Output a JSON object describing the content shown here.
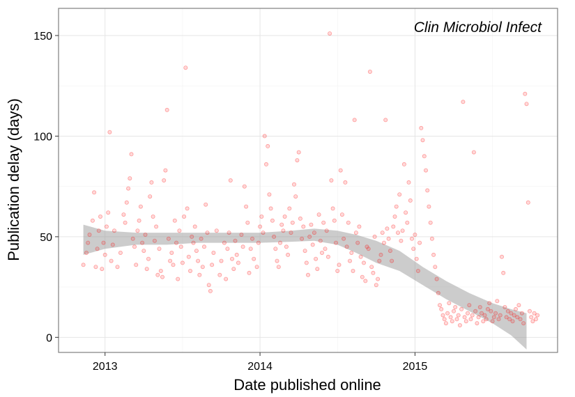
{
  "chart_data": {
    "type": "scatter",
    "title": "",
    "annotation": "Clin Microbiol Infect",
    "xlabel": "Date published online",
    "ylabel": "Publication delay (days)",
    "x_ticks": [
      {
        "label": "2013",
        "value": 2013.0
      },
      {
        "label": "2014",
        "value": 2014.0
      },
      {
        "label": "2015",
        "value": 2015.0
      }
    ],
    "y_ticks": [
      {
        "label": "0",
        "value": 0
      },
      {
        "label": "50",
        "value": 50
      },
      {
        "label": "100",
        "value": 100
      },
      {
        "label": "150",
        "value": 150
      }
    ],
    "xlim": [
      2012.7,
      2015.92
    ],
    "ylim": [
      -7.5,
      163.5
    ],
    "grid": true,
    "colors": {
      "points": "#ff0000",
      "band": "#999999",
      "panel_border": "#7f7f7f",
      "grid_major": "#e5e5e5",
      "grid_minor": "#f2f2f2"
    },
    "smooth_band": [
      {
        "x": 2012.86,
        "lower": 41,
        "upper": 56
      },
      {
        "x": 2013.0,
        "lower": 44,
        "upper": 53
      },
      {
        "x": 2013.2,
        "lower": 46,
        "upper": 52
      },
      {
        "x": 2013.4,
        "lower": 46,
        "upper": 52
      },
      {
        "x": 2013.6,
        "lower": 47,
        "upper": 52
      },
      {
        "x": 2013.8,
        "lower": 47,
        "upper": 52
      },
      {
        "x": 2014.0,
        "lower": 47,
        "upper": 52
      },
      {
        "x": 2014.2,
        "lower": 47.5,
        "upper": 53
      },
      {
        "x": 2014.35,
        "lower": 48,
        "upper": 54
      },
      {
        "x": 2014.5,
        "lower": 46,
        "upper": 53
      },
      {
        "x": 2014.62,
        "lower": 42,
        "upper": 51
      },
      {
        "x": 2014.75,
        "lower": 37,
        "upper": 48
      },
      {
        "x": 2014.9,
        "lower": 33,
        "upper": 43
      },
      {
        "x": 2015.05,
        "lower": 26,
        "upper": 35
      },
      {
        "x": 2015.2,
        "lower": 19,
        "upper": 28
      },
      {
        "x": 2015.35,
        "lower": 13,
        "upper": 22
      },
      {
        "x": 2015.5,
        "lower": 7,
        "upper": 17
      },
      {
        "x": 2015.62,
        "lower": 1,
        "upper": 14
      },
      {
        "x": 2015.72,
        "lower": -6,
        "upper": 12
      }
    ],
    "series": [
      {
        "points": [
          [
            2012.86,
            36
          ],
          [
            2012.88,
            42
          ],
          [
            2012.89,
            47
          ],
          [
            2012.9,
            51
          ],
          [
            2012.92,
            58
          ],
          [
            2012.93,
            72
          ],
          [
            2012.94,
            35
          ],
          [
            2012.95,
            44
          ],
          [
            2012.96,
            53
          ],
          [
            2012.97,
            60
          ],
          [
            2012.98,
            34
          ],
          [
            2012.99,
            47
          ],
          [
            2013.0,
            41
          ],
          [
            2013.01,
            55
          ],
          [
            2013.02,
            62
          ],
          [
            2013.03,
            102
          ],
          [
            2013.04,
            38
          ],
          [
            2013.05,
            46
          ],
          [
            2013.06,
            53
          ],
          [
            2013.08,
            35
          ],
          [
            2013.1,
            42
          ],
          [
            2013.12,
            61
          ],
          [
            2013.13,
            57
          ],
          [
            2013.14,
            67
          ],
          [
            2013.15,
            74
          ],
          [
            2013.16,
            79
          ],
          [
            2013.17,
            91
          ],
          [
            2013.18,
            49
          ],
          [
            2013.19,
            45
          ],
          [
            2013.2,
            36
          ],
          [
            2013.21,
            53
          ],
          [
            2013.22,
            58
          ],
          [
            2013.23,
            65
          ],
          [
            2013.24,
            47
          ],
          [
            2013.25,
            43
          ],
          [
            2013.26,
            51
          ],
          [
            2013.27,
            34
          ],
          [
            2013.28,
            39
          ],
          [
            2013.29,
            70
          ],
          [
            2013.3,
            77
          ],
          [
            2013.31,
            60
          ],
          [
            2013.32,
            48
          ],
          [
            2013.33,
            55
          ],
          [
            2013.34,
            31
          ],
          [
            2013.35,
            44
          ],
          [
            2013.36,
            33
          ],
          [
            2013.37,
            30
          ],
          [
            2013.38,
            78
          ],
          [
            2013.39,
            83
          ],
          [
            2013.4,
            113
          ],
          [
            2013.41,
            49
          ],
          [
            2013.42,
            38
          ],
          [
            2013.43,
            42
          ],
          [
            2013.44,
            36
          ],
          [
            2013.45,
            58
          ],
          [
            2013.46,
            47
          ],
          [
            2013.47,
            29
          ],
          [
            2013.48,
            53
          ],
          [
            2013.49,
            45
          ],
          [
            2013.5,
            37
          ],
          [
            2013.51,
            60
          ],
          [
            2013.52,
            134
          ],
          [
            2013.53,
            64
          ],
          [
            2013.54,
            40
          ],
          [
            2013.55,
            33
          ],
          [
            2013.56,
            50
          ],
          [
            2013.57,
            47
          ],
          [
            2013.58,
            55
          ],
          [
            2013.59,
            43
          ],
          [
            2013.6,
            38
          ],
          [
            2013.61,
            31
          ],
          [
            2013.62,
            49
          ],
          [
            2013.63,
            35
          ],
          [
            2013.64,
            45
          ],
          [
            2013.65,
            66
          ],
          [
            2013.66,
            52
          ],
          [
            2013.67,
            26
          ],
          [
            2013.68,
            23
          ],
          [
            2013.69,
            36
          ],
          [
            2013.7,
            42
          ],
          [
            2013.72,
            53
          ],
          [
            2013.74,
            31
          ],
          [
            2013.75,
            38
          ],
          [
            2013.77,
            47
          ],
          [
            2013.78,
            29
          ],
          [
            2013.79,
            44
          ],
          [
            2013.8,
            52
          ],
          [
            2013.81,
            78
          ],
          [
            2013.82,
            39
          ],
          [
            2013.83,
            34
          ],
          [
            2013.84,
            48
          ],
          [
            2013.85,
            41
          ],
          [
            2013.86,
            37
          ],
          [
            2013.88,
            51
          ],
          [
            2013.89,
            45
          ],
          [
            2013.9,
            75
          ],
          [
            2013.91,
            65
          ],
          [
            2013.92,
            57
          ],
          [
            2013.93,
            32
          ],
          [
            2013.94,
            44
          ],
          [
            2013.95,
            49
          ],
          [
            2013.96,
            39
          ],
          [
            2013.98,
            35
          ],
          [
            2013.99,
            47
          ],
          [
            2014.0,
            55
          ],
          [
            2014.01,
            60
          ],
          [
            2014.02,
            52
          ],
          [
            2014.03,
            100
          ],
          [
            2014.04,
            86
          ],
          [
            2014.05,
            95
          ],
          [
            2014.06,
            71
          ],
          [
            2014.07,
            64
          ],
          [
            2014.08,
            58
          ],
          [
            2014.09,
            50
          ],
          [
            2014.1,
            44
          ],
          [
            2014.11,
            38
          ],
          [
            2014.12,
            35
          ],
          [
            2014.13,
            47
          ],
          [
            2014.14,
            56
          ],
          [
            2014.15,
            53
          ],
          [
            2014.16,
            60
          ],
          [
            2014.17,
            45
          ],
          [
            2014.18,
            41
          ],
          [
            2014.19,
            64
          ],
          [
            2014.2,
            52
          ],
          [
            2014.21,
            57
          ],
          [
            2014.22,
            76
          ],
          [
            2014.23,
            70
          ],
          [
            2014.24,
            88
          ],
          [
            2014.25,
            92
          ],
          [
            2014.26,
            59
          ],
          [
            2014.27,
            49
          ],
          [
            2014.28,
            55
          ],
          [
            2014.29,
            43
          ],
          [
            2014.3,
            37
          ],
          [
            2014.31,
            31
          ],
          [
            2014.32,
            50
          ],
          [
            2014.33,
            56
          ],
          [
            2014.34,
            46
          ],
          [
            2014.35,
            52
          ],
          [
            2014.36,
            39
          ],
          [
            2014.37,
            34
          ],
          [
            2014.38,
            61
          ],
          [
            2014.39,
            48
          ],
          [
            2014.4,
            42
          ],
          [
            2014.41,
            57
          ],
          [
            2014.42,
            44
          ],
          [
            2014.43,
            53
          ],
          [
            2014.44,
            40
          ],
          [
            2014.45,
            151
          ],
          [
            2014.46,
            78
          ],
          [
            2014.47,
            64
          ],
          [
            2014.48,
            58
          ],
          [
            2014.49,
            47
          ],
          [
            2014.5,
            33
          ],
          [
            2014.51,
            36
          ],
          [
            2014.52,
            83
          ],
          [
            2014.53,
            61
          ],
          [
            2014.54,
            49
          ],
          [
            2014.55,
            77
          ],
          [
            2014.56,
            45
          ],
          [
            2014.57,
            57
          ],
          [
            2014.58,
            38
          ],
          [
            2014.59,
            42
          ],
          [
            2014.6,
            33
          ],
          [
            2014.61,
            108
          ],
          [
            2014.62,
            52
          ],
          [
            2014.63,
            47
          ],
          [
            2014.64,
            55
          ],
          [
            2014.65,
            40
          ],
          [
            2014.66,
            30
          ],
          [
            2014.67,
            37
          ],
          [
            2014.68,
            28
          ],
          [
            2014.69,
            45
          ],
          [
            2014.7,
            44
          ],
          [
            2014.71,
            132
          ],
          [
            2014.72,
            35
          ],
          [
            2014.73,
            32
          ],
          [
            2014.74,
            50
          ],
          [
            2014.75,
            26
          ],
          [
            2014.76,
            29
          ],
          [
            2014.77,
            38
          ],
          [
            2014.78,
            41
          ],
          [
            2014.79,
            52
          ],
          [
            2014.8,
            47
          ],
          [
            2014.81,
            108
          ],
          [
            2014.82,
            54
          ],
          [
            2014.83,
            49
          ],
          [
            2014.84,
            43
          ],
          [
            2014.85,
            38
          ],
          [
            2014.86,
            55
          ],
          [
            2014.87,
            60
          ],
          [
            2014.88,
            65
          ],
          [
            2014.89,
            52
          ],
          [
            2014.9,
            71
          ],
          [
            2014.91,
            48
          ],
          [
            2014.92,
            53
          ],
          [
            2014.93,
            86
          ],
          [
            2014.94,
            62
          ],
          [
            2014.95,
            57
          ],
          [
            2014.96,
            77
          ],
          [
            2014.97,
            68
          ],
          [
            2014.98,
            49
          ],
          [
            2014.99,
            44
          ],
          [
            2015.0,
            51
          ],
          [
            2015.01,
            39
          ],
          [
            2015.02,
            33
          ],
          [
            2015.03,
            47
          ],
          [
            2015.04,
            104
          ],
          [
            2015.05,
            98
          ],
          [
            2015.06,
            90
          ],
          [
            2015.07,
            83
          ],
          [
            2015.08,
            73
          ],
          [
            2015.09,
            65
          ],
          [
            2015.1,
            57
          ],
          [
            2015.11,
            49
          ],
          [
            2015.12,
            41
          ],
          [
            2015.13,
            35
          ],
          [
            2015.14,
            29
          ],
          [
            2015.15,
            22
          ],
          [
            2015.16,
            16
          ],
          [
            2015.17,
            14
          ],
          [
            2015.18,
            11
          ],
          [
            2015.19,
            9
          ],
          [
            2015.2,
            7
          ],
          [
            2015.21,
            12
          ],
          [
            2015.22,
            17
          ],
          [
            2015.23,
            10
          ],
          [
            2015.24,
            8
          ],
          [
            2015.25,
            13
          ],
          [
            2015.26,
            15
          ],
          [
            2015.27,
            9
          ],
          [
            2015.28,
            11
          ],
          [
            2015.29,
            6
          ],
          [
            2015.3,
            14
          ],
          [
            2015.31,
            117
          ],
          [
            2015.32,
            10
          ],
          [
            2015.33,
            8
          ],
          [
            2015.34,
            12
          ],
          [
            2015.35,
            16
          ],
          [
            2015.36,
            9
          ],
          [
            2015.37,
            11
          ],
          [
            2015.38,
            92
          ],
          [
            2015.39,
            13
          ],
          [
            2015.4,
            7
          ],
          [
            2015.41,
            10
          ],
          [
            2015.42,
            15
          ],
          [
            2015.43,
            12
          ],
          [
            2015.44,
            8
          ],
          [
            2015.45,
            11
          ],
          [
            2015.46,
            9
          ],
          [
            2015.47,
            14
          ],
          [
            2015.48,
            17
          ],
          [
            2015.49,
            13
          ],
          [
            2015.5,
            8
          ],
          [
            2015.51,
            10
          ],
          [
            2015.52,
            12
          ],
          [
            2015.53,
            18
          ],
          [
            2015.54,
            9
          ],
          [
            2015.55,
            11
          ],
          [
            2015.56,
            40
          ],
          [
            2015.57,
            32
          ],
          [
            2015.58,
            15
          ],
          [
            2015.59,
            10
          ],
          [
            2015.6,
            13
          ],
          [
            2015.61,
            9
          ],
          [
            2015.62,
            12
          ],
          [
            2015.63,
            8
          ],
          [
            2015.64,
            11
          ],
          [
            2015.65,
            14
          ],
          [
            2015.66,
            10
          ],
          [
            2015.67,
            16
          ],
          [
            2015.68,
            9
          ],
          [
            2015.69,
            12
          ],
          [
            2015.7,
            7
          ],
          [
            2015.71,
            121
          ],
          [
            2015.72,
            116
          ],
          [
            2015.73,
            67
          ],
          [
            2015.74,
            13
          ],
          [
            2015.75,
            10
          ],
          [
            2015.76,
            8
          ],
          [
            2015.77,
            12
          ],
          [
            2015.78,
            9
          ],
          [
            2015.79,
            11
          ]
        ]
      }
    ]
  }
}
